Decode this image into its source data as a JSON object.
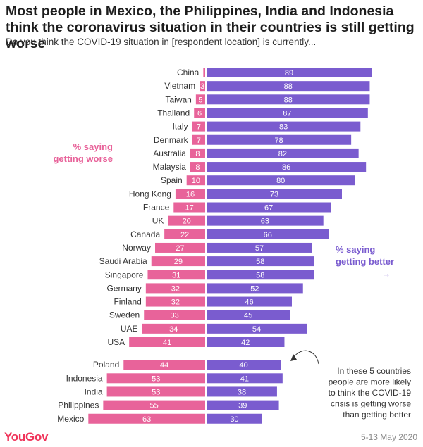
{
  "title": "Most people in Mexico, the Philippines, India and Indonesia think the coronavirus situation in their countries is still getting worse",
  "subtitle": "Do you think the COVID-19 situation in [respondent location] is currently...",
  "legend": {
    "worse_line1": "% saying",
    "worse_line2": "getting worse",
    "worse_arrow": "←",
    "better_line1": "% saying",
    "better_line2": "getting better",
    "better_arrow": "→"
  },
  "annotation": {
    "lines": [
      "In these 5 countries",
      "people are more likely",
      "to think the COVID-19",
      "crisis is getting worse",
      "than getting better"
    ]
  },
  "footer": {
    "logo": "YouGov",
    "date": "5-13 May 2020"
  },
  "colors": {
    "worse": "#e8639a",
    "better": "#7a5ccf"
  },
  "chart_data": {
    "type": "bar",
    "orientation": "diverging-horizontal",
    "categories": [
      "China",
      "Vietnam",
      "Taiwan",
      "Thailand",
      "Italy",
      "Denmark",
      "Australia",
      "Malaysia",
      "Spain",
      "Hong Kong",
      "France",
      "UK",
      "Canada",
      "Norway",
      "Saudi Arabia",
      "Singapore",
      "Germany",
      "Finland",
      "Sweden",
      "UAE",
      "USA",
      "Poland",
      "Indonesia",
      "India",
      "Philippines",
      "Mexico"
    ],
    "series": [
      {
        "values": [
          1,
          3,
          5,
          6,
          7,
          7,
          8,
          8,
          10,
          16,
          17,
          20,
          22,
          27,
          29,
          31,
          32,
          32,
          33,
          34,
          41,
          44,
          53,
          53,
          55,
          63
        ]
      },
      {
        "values": [
          89,
          88,
          88,
          87,
          83,
          78,
          82,
          86,
          80,
          73,
          67,
          63,
          66,
          57,
          58,
          58,
          52,
          46,
          45,
          54,
          42,
          40,
          41,
          38,
          39,
          30
        ]
      }
    ],
    "value_labels_worse": [
      "",
      "3",
      "5",
      "6",
      "7",
      "7",
      "8",
      "8",
      "10",
      "16",
      "17",
      "20",
      "22",
      "27",
      "29",
      "31",
      "32",
      "32",
      "33",
      "34",
      "41",
      "44",
      "53",
      "53",
      "55",
      "63"
    ],
    "value_labels_better": [
      "89",
      "88",
      "88",
      "87",
      "83",
      "78",
      "82",
      "86",
      "80",
      "73",
      "67",
      "63",
      "66",
      "57",
      "58",
      "58",
      "52",
      "46",
      "45",
      "54",
      "42",
      "40",
      "41",
      "38",
      "39",
      "30"
    ],
    "groups": [
      21,
      5
    ]
  }
}
